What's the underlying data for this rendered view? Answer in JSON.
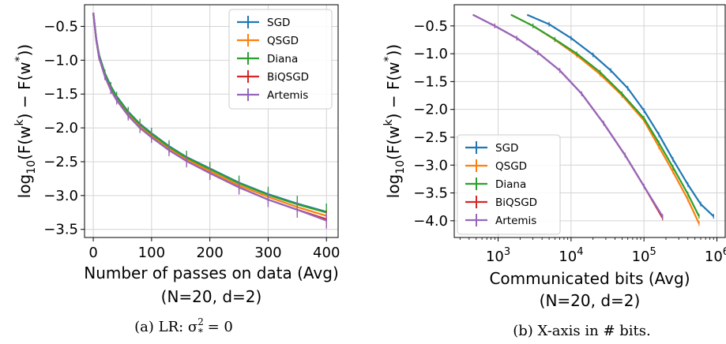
{
  "chart_data": [
    {
      "type": "line",
      "xlabel": "Number of passes on data (Avg)",
      "subtitle": "(N=20, d=2)",
      "ylabel_text": "log",
      "ylabel_sub": "10",
      "ylabel_expr": "(F(w",
      "ylabel_sup": "k",
      "ylabel_mid": ") − F(w",
      "ylabel_sup2": "*",
      "ylabel_end": "))",
      "caption": "(a) LR: σ",
      "caption_sup": "2",
      "caption_sub": "*",
      "caption_end": " = 0",
      "xlim": [
        -15,
        420
      ],
      "ylim": [
        -3.62,
        -0.18
      ],
      "xticks": [
        0,
        100,
        200,
        300,
        400
      ],
      "xtick_labels": [
        "0",
        "100",
        "200",
        "300",
        "400"
      ],
      "yticks": [
        -0.5,
        -1.0,
        -1.5,
        -2.0,
        -2.5,
        -3.0,
        -3.5
      ],
      "ytick_labels": [
        "−0.5",
        "−1.0",
        "−1.5",
        "−2.0",
        "−2.5",
        "−3.0",
        "−3.5"
      ],
      "grid": true,
      "legend_position": "top-right",
      "series": [
        {
          "name": "SGD",
          "color": "#1f77b4",
          "x": [
            0,
            5,
            10,
            20,
            30,
            40,
            60,
            80,
            100,
            130,
            160,
            200,
            250,
            300,
            350,
            400
          ],
          "y": [
            -0.3,
            -0.68,
            -0.92,
            -1.19,
            -1.38,
            -1.53,
            -1.76,
            -1.94,
            -2.08,
            -2.27,
            -2.43,
            -2.6,
            -2.81,
            -2.98,
            -3.12,
            -3.24
          ]
        },
        {
          "name": "QSGD",
          "color": "#ff7f0e",
          "x": [
            0,
            5,
            10,
            20,
            30,
            40,
            60,
            80,
            100,
            130,
            160,
            200,
            250,
            300,
            350,
            400
          ],
          "y": [
            -0.3,
            -0.69,
            -0.94,
            -1.22,
            -1.41,
            -1.56,
            -1.79,
            -1.97,
            -2.11,
            -2.3,
            -2.46,
            -2.64,
            -2.85,
            -3.02,
            -3.17,
            -3.3
          ]
        },
        {
          "name": "Diana",
          "color": "#2ca02c",
          "x": [
            0,
            5,
            10,
            20,
            30,
            40,
            60,
            80,
            100,
            130,
            160,
            200,
            250,
            300,
            350,
            400
          ],
          "y": [
            -0.3,
            -0.68,
            -0.93,
            -1.2,
            -1.39,
            -1.54,
            -1.77,
            -1.95,
            -2.09,
            -2.28,
            -2.44,
            -2.61,
            -2.82,
            -2.99,
            -3.13,
            -3.25
          ]
        },
        {
          "name": "BiQSGD",
          "color": "#d62728",
          "x": [
            0,
            5,
            10,
            20,
            30,
            40,
            60,
            80,
            100,
            130,
            160,
            200,
            250,
            300,
            350,
            400
          ],
          "y": [
            -0.3,
            -0.7,
            -0.96,
            -1.24,
            -1.44,
            -1.59,
            -1.82,
            -2.0,
            -2.14,
            -2.33,
            -2.49,
            -2.67,
            -2.88,
            -3.06,
            -3.21,
            -3.35
          ]
        },
        {
          "name": "Artemis",
          "color": "#9467bd",
          "x": [
            0,
            5,
            10,
            20,
            30,
            40,
            60,
            80,
            100,
            130,
            160,
            200,
            250,
            300,
            350,
            400
          ],
          "y": [
            -0.3,
            -0.7,
            -0.96,
            -1.24,
            -1.44,
            -1.59,
            -1.82,
            -2.0,
            -2.14,
            -2.33,
            -2.49,
            -2.67,
            -2.88,
            -3.06,
            -3.21,
            -3.37
          ]
        }
      ]
    },
    {
      "type": "line",
      "xscale": "log",
      "xlabel": "Communicated bits (Avg)",
      "subtitle": "(N=20, d=2)",
      "ylabel_text": "log",
      "ylabel_sub": "10",
      "ylabel_expr": "(F(w",
      "ylabel_sup": "k",
      "ylabel_mid": ") − F(w",
      "ylabel_sup2": "*",
      "ylabel_end": "))",
      "caption": "(b) X-axis in # bits.",
      "xlim": [
        250,
        1300000
      ],
      "ylim": [
        -4.3,
        -0.12
      ],
      "xticks": [
        1000,
        10000,
        100000,
        1000000
      ],
      "xtick_base": "10",
      "xtick_exps": [
        "3",
        "4",
        "5",
        "6"
      ],
      "yticks": [
        -0.5,
        -1.0,
        -1.5,
        -2.0,
        -2.5,
        -3.0,
        -3.5,
        -4.0
      ],
      "ytick_labels": [
        "−0.5",
        "−1.0",
        "−1.5",
        "−2.0",
        "−2.5",
        "−3.0",
        "−3.5",
        "−4.0"
      ],
      "grid": true,
      "legend_position": "lower-left",
      "series": [
        {
          "name": "SGD",
          "color": "#1f77b4",
          "x": [
            2500,
            5000,
            10000,
            20000,
            35000,
            60000,
            100000,
            160000,
            250000,
            400000,
            600000,
            900000
          ],
          "y": [
            -0.3,
            -0.47,
            -0.72,
            -1.02,
            -1.3,
            -1.62,
            -2.02,
            -2.45,
            -2.9,
            -3.35,
            -3.7,
            -3.92
          ]
        },
        {
          "name": "QSGD",
          "color": "#ff7f0e",
          "x": [
            1500,
            3000,
            6000,
            12000,
            25000,
            50000,
            100000,
            160000,
            250000,
            400000,
            570000
          ],
          "y": [
            -0.3,
            -0.5,
            -0.75,
            -1.03,
            -1.37,
            -1.75,
            -2.2,
            -2.67,
            -3.12,
            -3.62,
            -4.05
          ]
        },
        {
          "name": "Diana",
          "color": "#2ca02c",
          "x": [
            1500,
            3000,
            6000,
            12000,
            25000,
            50000,
            100000,
            160000,
            250000,
            400000,
            570000
          ],
          "y": [
            -0.3,
            -0.5,
            -0.74,
            -1.0,
            -1.33,
            -1.72,
            -2.16,
            -2.6,
            -3.04,
            -3.52,
            -3.92
          ]
        },
        {
          "name": "BiQSGD",
          "color": "#d62728",
          "x": [
            450,
            900,
            1800,
            3500,
            7000,
            14000,
            28000,
            55000,
            100000,
            180000
          ],
          "y": [
            -0.3,
            -0.5,
            -0.72,
            -0.98,
            -1.3,
            -1.72,
            -2.25,
            -2.82,
            -3.38,
            -3.95
          ]
        },
        {
          "name": "Artemis",
          "color": "#9467bd",
          "x": [
            450,
            900,
            1800,
            3500,
            7000,
            14000,
            28000,
            55000,
            100000,
            180000
          ],
          "y": [
            -0.3,
            -0.5,
            -0.72,
            -0.98,
            -1.3,
            -1.72,
            -2.25,
            -2.82,
            -3.38,
            -3.92
          ]
        }
      ]
    }
  ]
}
